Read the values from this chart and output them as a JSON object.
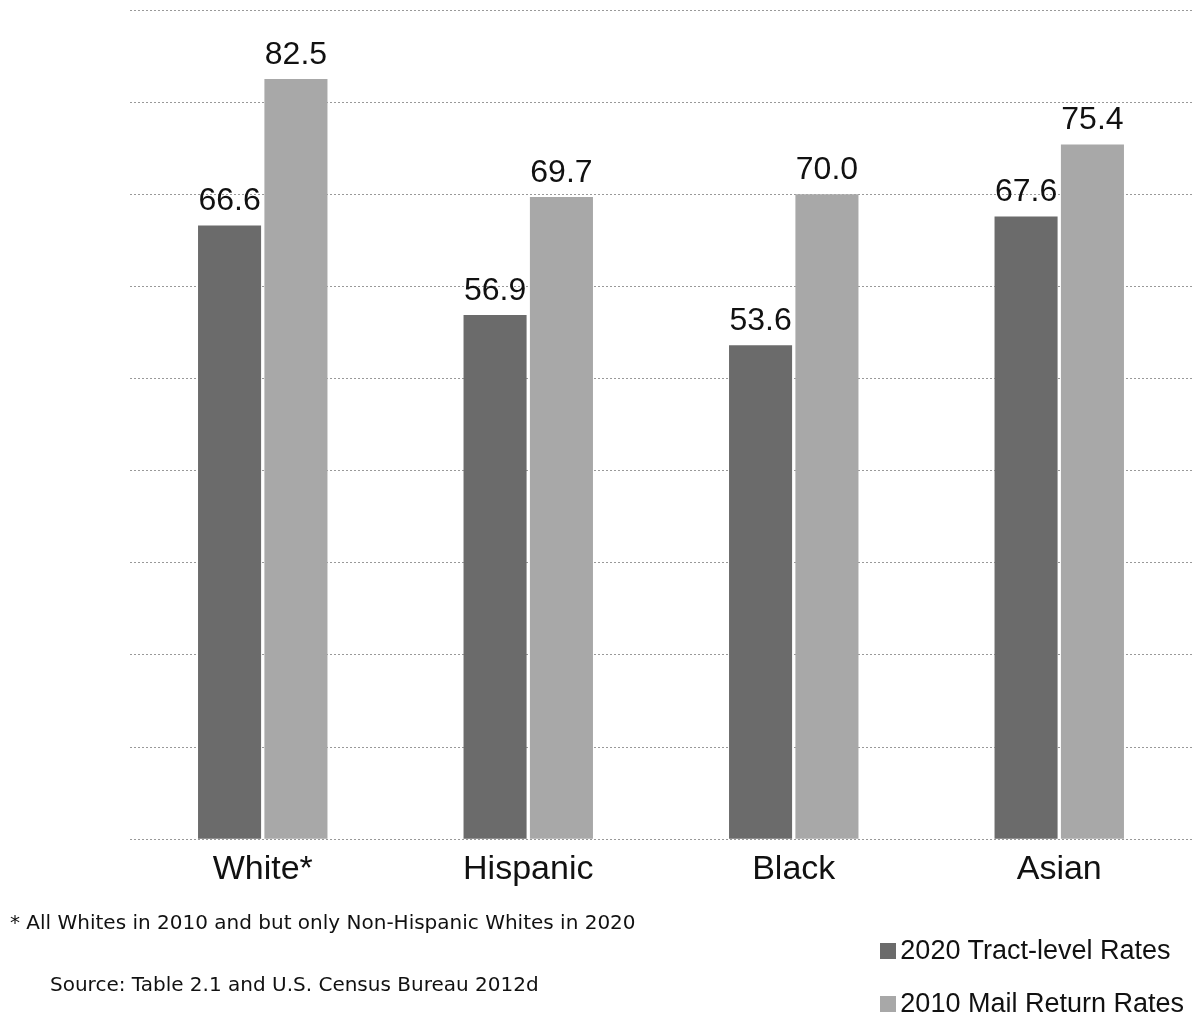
{
  "chart_data": {
    "type": "bar",
    "categories": [
      "White*",
      "Hispanic",
      "Black",
      "Asian"
    ],
    "series": [
      {
        "name": "2020 Tract-level Rates",
        "color": "#6b6b6b",
        "values": [
          66.6,
          56.9,
          53.6,
          67.6
        ],
        "value_labels": [
          "66.6",
          "56.9",
          "53.6",
          "67.6"
        ]
      },
      {
        "name": "2010 Mail Return Rates",
        "color": "#a8a8a8",
        "values": [
          82.5,
          69.7,
          70.0,
          75.4
        ],
        "value_labels": [
          "82.5",
          "69.7",
          "70.0",
          "75.4"
        ]
      }
    ],
    "ylim": [
      0,
      90
    ],
    "yticks": [
      {
        "value": 0,
        "label": null
      },
      {
        "value": 10,
        "label": null
      },
      {
        "value": 20,
        "label": null
      },
      {
        "value": 30,
        "label": null
      },
      {
        "value": 40,
        "label": null
      },
      {
        "value": 50,
        "label": null
      },
      {
        "value": 60,
        "label": null
      },
      {
        "value": 70,
        "label": null
      },
      {
        "value": 80,
        "label": null
      },
      {
        "value": 90,
        "label": null
      }
    ],
    "tick_labels": "x",
    "grid": "y",
    "legend": "bottom right",
    "annotations": [
      "* All Whites in 2010 and  but only Non-Hispanic Whites in 2020",
      "Source: Table 2.1 and U.S. Census Bureau 2012d"
    ]
  }
}
